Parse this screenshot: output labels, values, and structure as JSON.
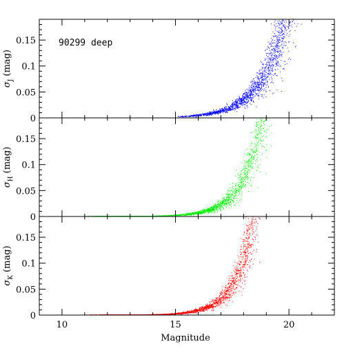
{
  "chart_data": {
    "type": "scatter",
    "annotation": "90299 deep",
    "xlabel": "Magnitude",
    "xlim": [
      9,
      22
    ],
    "x_ticks": [
      10,
      15,
      20
    ],
    "panels": [
      {
        "name": "J",
        "ylabel_prefix": "σ",
        "ylabel_sub": "J",
        "ylabel_suffix": " (mag)",
        "ylim": [
          0,
          0.19
        ],
        "y_ticks": [
          0,
          0.05,
          0.1,
          0.15
        ],
        "y_tick_labels": [
          "0",
          "0.05",
          "0.1",
          "0.15"
        ],
        "color": "#0000ff",
        "curve": {
          "x0": 15.0,
          "x1": 20.7,
          "a": 0.0012,
          "b": 0.96,
          "mref": 14.5,
          "scatter_growth": 0.35
        }
      },
      {
        "name": "H",
        "ylabel_prefix": "σ",
        "ylabel_sub": "H",
        "ylabel_suffix": " (mag)",
        "ylim": [
          0,
          0.19
        ],
        "y_ticks": [
          0,
          0.05,
          0.1,
          0.15
        ],
        "y_tick_labels": [
          "0",
          "0.05",
          "0.1",
          "0.15"
        ],
        "color": "#00ee00",
        "curve": {
          "x0": 11.0,
          "x1": 19.5,
          "a": 0.0012,
          "b": 1.18,
          "mref": 14.5,
          "scatter_growth": 0.35
        }
      },
      {
        "name": "K",
        "ylabel_prefix": "σ",
        "ylabel_sub": "K",
        "ylabel_suffix": " (mag)",
        "ylim": [
          0,
          0.19
        ],
        "y_ticks": [
          0,
          0.05,
          0.1,
          0.15
        ],
        "y_tick_labels": [
          "0",
          "0.05",
          "0.1",
          "0.15"
        ],
        "color": "#ff0000",
        "curve": {
          "x0": 11.0,
          "x1": 19.0,
          "a": 0.0014,
          "b": 1.25,
          "mref": 14.5,
          "scatter_growth": 0.35
        }
      }
    ]
  }
}
